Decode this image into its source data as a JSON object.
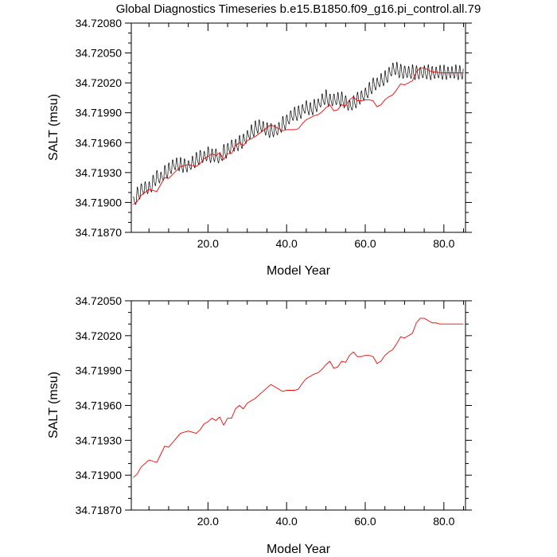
{
  "title": "Global Diagnostics Timeseries b.e15.B1850.f09_g16.pi_control.all.79",
  "colors": {
    "monthly": "#000000",
    "annual": "#ff0000",
    "axes": "#000000",
    "background": "#ffffff"
  },
  "chart_data": [
    {
      "type": "line",
      "title": "Global Diagnostics Timeseries b.e15.B1850.f09_g16.pi_control.all.79",
      "xlabel": "Model Year",
      "ylabel": "SALT (msu)",
      "xlim": [
        0.5,
        85.5
      ],
      "ylim": [
        34.7187,
        34.7208
      ],
      "xticks": [
        20,
        40,
        60,
        80
      ],
      "xtick_labels": [
        "20.0",
        "40.0",
        "60.0",
        "80.0"
      ],
      "yticks": [
        34.7187,
        34.719,
        34.7193,
        34.7196,
        34.7199,
        34.7202,
        34.7205,
        34.7208
      ],
      "ytick_labels": [
        "34.71870",
        "34.71900",
        "34.71930",
        "34.71960",
        "34.71990",
        "34.72020",
        "34.72050",
        "34.72080"
      ],
      "grid": false,
      "legend": "none",
      "series": [
        {
          "style": "monthly",
          "color": "#000000",
          "x": [
            1,
            2,
            3,
            4,
            5,
            6,
            7,
            8,
            9,
            10,
            11,
            12,
            13,
            14,
            15,
            16,
            17,
            18,
            19,
            20,
            21,
            22,
            23,
            24,
            25,
            26,
            27,
            28,
            29,
            30,
            31,
            32,
            33,
            34,
            35,
            36,
            37,
            38,
            39,
            40,
            41,
            42,
            43,
            44,
            45,
            46,
            47,
            48,
            49,
            50,
            51,
            52,
            53,
            54,
            55,
            56,
            57,
            58,
            59,
            60,
            61,
            62,
            63,
            64,
            65,
            66,
            67,
            68,
            69,
            70,
            71,
            72,
            73,
            74,
            75,
            76,
            77,
            78,
            79,
            80,
            81,
            82,
            83,
            84,
            85
          ],
          "y": [
            34.71898,
            34.71907,
            34.71912,
            34.71915,
            34.71913,
            34.71919,
            34.71926,
            34.71924,
            34.71929,
            34.71932,
            34.71937,
            34.71938,
            34.71937,
            34.71937,
            34.71936,
            34.71939,
            34.71942,
            34.71946,
            34.71945,
            34.71948,
            34.71946,
            34.71948,
            34.71943,
            34.7195,
            34.71952,
            34.71957,
            34.71956,
            34.71959,
            34.71962,
            34.71966,
            34.7197,
            34.71974,
            34.71977,
            34.71975,
            34.71972,
            34.71972,
            34.71972,
            34.71973,
            34.71978,
            34.71981,
            34.71986,
            34.71988,
            34.71989,
            34.71992,
            34.71996,
            34.71992,
            34.71996,
            34.71998,
            34.72002,
            34.72005,
            34.72002,
            34.72003,
            34.72003,
            34.72003,
            34.72001,
            34.71996,
            34.71999,
            34.72003,
            34.72006,
            34.72008,
            34.72012,
            34.72018,
            34.72019,
            34.72022,
            34.72024,
            34.72029,
            34.72034,
            34.72033,
            34.72031,
            34.72031,
            34.7203,
            34.7203,
            34.7203,
            34.7203,
            34.7203,
            34.7203,
            34.7203,
            34.7203,
            34.7203,
            34.7203,
            34.7203,
            34.7203,
            34.7203,
            34.7203,
            34.7203
          ],
          "amplitude": 0.00013
        },
        {
          "style": "annual",
          "color": "#ff0000",
          "x": [
            1,
            2,
            3,
            4,
            5,
            6,
            7,
            8,
            9,
            10,
            11,
            12,
            13,
            14,
            15,
            16,
            17,
            18,
            19,
            20,
            21,
            22,
            23,
            24,
            25,
            26,
            27,
            28,
            29,
            30,
            31,
            32,
            33,
            34,
            35,
            36,
            37,
            38,
            39,
            40,
            41,
            42,
            43,
            44,
            45,
            46,
            47,
            48,
            49,
            50,
            51,
            52,
            53,
            54,
            55,
            56,
            57,
            58,
            59,
            60,
            61,
            62,
            63,
            64,
            65,
            66,
            67,
            68,
            69,
            70,
            71,
            72,
            73,
            74,
            75,
            76,
            77,
            78,
            79,
            80,
            81,
            82,
            83,
            84,
            85
          ],
          "y": [
            34.71898,
            34.71901,
            34.71907,
            34.7191,
            34.71913,
            34.71912,
            34.71911,
            34.71918,
            34.71925,
            34.71924,
            34.71928,
            34.71932,
            34.71936,
            34.71937,
            34.71938,
            34.71937,
            34.71936,
            34.71939,
            34.71944,
            34.71946,
            34.71949,
            34.71947,
            34.7195,
            34.71943,
            34.71949,
            34.71949,
            34.71957,
            34.7196,
            34.71957,
            34.71962,
            34.71964,
            34.71966,
            34.71969,
            34.71972,
            34.71975,
            34.71978,
            34.71976,
            34.71974,
            34.71972,
            34.71973,
            34.71973,
            34.71973,
            34.71974,
            34.71979,
            34.71983,
            34.71985,
            34.71987,
            34.71988,
            34.71991,
            34.71995,
            34.71998,
            34.71992,
            34.71993,
            34.71998,
            34.71997,
            34.72003,
            34.72006,
            34.72002,
            34.72002,
            34.72003,
            34.72003,
            34.72002,
            34.71996,
            34.71998,
            34.72003,
            34.72006,
            34.72008,
            34.72013,
            34.72019,
            34.72018,
            34.7202,
            34.72022,
            34.72031,
            34.72035,
            34.72035,
            34.72033,
            34.72031,
            34.72031,
            34.7203,
            34.7203,
            34.7203,
            34.7203,
            34.7203,
            34.7203,
            34.7203
          ]
        }
      ]
    },
    {
      "type": "line",
      "xlabel": "Model Year",
      "ylabel": "SALT (msu)",
      "xlim": [
        0.5,
        85.5
      ],
      "ylim": [
        34.7187,
        34.7205
      ],
      "xticks": [
        20,
        40,
        60,
        80
      ],
      "xtick_labels": [
        "20.0",
        "40.0",
        "60.0",
        "80.0"
      ],
      "yticks": [
        34.7187,
        34.719,
        34.7193,
        34.7196,
        34.7199,
        34.7202,
        34.7205
      ],
      "ytick_labels": [
        "34.71870",
        "34.71900",
        "34.71930",
        "34.71960",
        "34.71990",
        "34.72020",
        "34.72050"
      ],
      "grid": false,
      "legend": "none",
      "series": [
        {
          "style": "annual",
          "color": "#ff0000",
          "x": [
            1,
            2,
            3,
            4,
            5,
            6,
            7,
            8,
            9,
            10,
            11,
            12,
            13,
            14,
            15,
            16,
            17,
            18,
            19,
            20,
            21,
            22,
            23,
            24,
            25,
            26,
            27,
            28,
            29,
            30,
            31,
            32,
            33,
            34,
            35,
            36,
            37,
            38,
            39,
            40,
            41,
            42,
            43,
            44,
            45,
            46,
            47,
            48,
            49,
            50,
            51,
            52,
            53,
            54,
            55,
            56,
            57,
            58,
            59,
            60,
            61,
            62,
            63,
            64,
            65,
            66,
            67,
            68,
            69,
            70,
            71,
            72,
            73,
            74,
            75,
            76,
            77,
            78,
            79,
            80,
            81,
            82,
            83,
            84,
            85
          ],
          "y": [
            34.71898,
            34.71901,
            34.71907,
            34.7191,
            34.71913,
            34.71912,
            34.71911,
            34.71918,
            34.71925,
            34.71924,
            34.71928,
            34.71932,
            34.71936,
            34.71937,
            34.71938,
            34.71937,
            34.71936,
            34.71939,
            34.71944,
            34.71946,
            34.71949,
            34.71947,
            34.7195,
            34.71943,
            34.71949,
            34.71949,
            34.71957,
            34.7196,
            34.71957,
            34.71962,
            34.71964,
            34.71966,
            34.71969,
            34.71972,
            34.71975,
            34.71978,
            34.71976,
            34.71974,
            34.71972,
            34.71973,
            34.71973,
            34.71973,
            34.71974,
            34.71979,
            34.71983,
            34.71985,
            34.71987,
            34.71988,
            34.71991,
            34.71995,
            34.71998,
            34.71992,
            34.71993,
            34.71998,
            34.71997,
            34.72003,
            34.72006,
            34.72002,
            34.72002,
            34.72003,
            34.72003,
            34.72002,
            34.71996,
            34.71998,
            34.72003,
            34.72006,
            34.72008,
            34.72013,
            34.72019,
            34.72018,
            34.7202,
            34.72022,
            34.72031,
            34.72035,
            34.72035,
            34.72033,
            34.72031,
            34.72031,
            34.7203,
            34.7203,
            34.7203,
            34.7203,
            34.7203,
            34.7203,
            34.7203
          ]
        }
      ]
    }
  ]
}
